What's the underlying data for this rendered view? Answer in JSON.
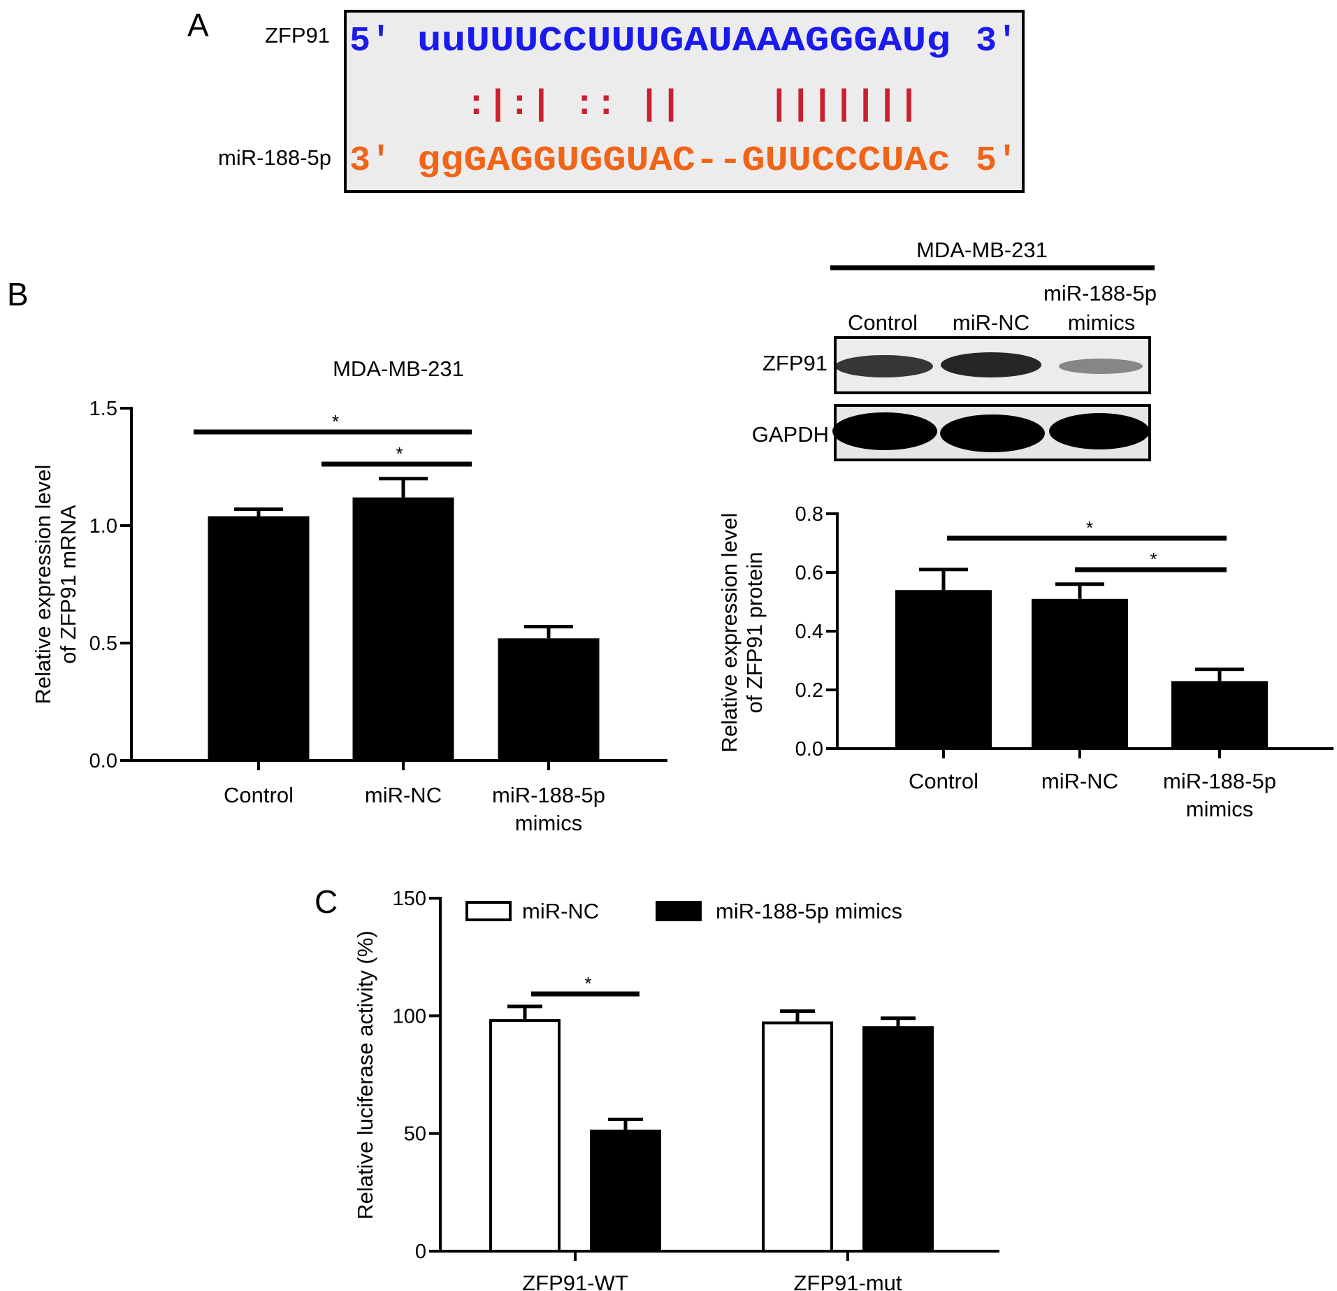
{
  "panel_labels": {
    "a": "A",
    "b": "B",
    "c": "C"
  },
  "alignment": {
    "top_label": "ZFP91",
    "bottom_label": "miR-188-5p",
    "top_seq": {
      "five": "5'",
      "seq": "uuUUUCCUUUGAUAAAGGGAUg",
      "three": "3'"
    },
    "pairing": ":|:| :: ||    |||||||",
    "bottom_seq": {
      "three": "3'",
      "seq": "ggGAGGUGGUAC--GUUCCCUAc",
      "five": "5'"
    },
    "colors": {
      "top": "#1a1aee",
      "bottom": "#f06418",
      "pairing": "#cc1f2e",
      "box": "#ececec"
    }
  },
  "western_blot": {
    "cell_line": "MDA-MB-231",
    "lanes": [
      "Control",
      "miR-NC",
      "miR-188-5p mimics"
    ],
    "lane_label_lines": [
      [
        "Control"
      ],
      [
        "miR-NC"
      ],
      [
        "miR-188-5p",
        "mimics"
      ]
    ],
    "rows": [
      "ZFP91",
      "GAPDH"
    ]
  },
  "chart_data": [
    {
      "type": "bar",
      "title": "MDA-MB-231",
      "ylabel": [
        "Relative expression level",
        "of  ZFP91 mRNA"
      ],
      "xlabel": "",
      "categories": [
        "Control",
        "miR-NC",
        "miR-188-5p mimics"
      ],
      "category_label_lines": [
        [
          "Control"
        ],
        [
          "miR-NC"
        ],
        [
          "miR-188-5p",
          "mimics"
        ]
      ],
      "values": [
        1.04,
        1.12,
        0.52
      ],
      "errors": [
        0.03,
        0.08,
        0.05
      ],
      "ylim": [
        0,
        1.5
      ],
      "yticks": [
        "0.0",
        "0.5",
        "1.0",
        "1.5"
      ],
      "significance": [
        {
          "from": 0,
          "to": 2,
          "label": "*"
        },
        {
          "from": 1,
          "to": 2,
          "label": "*"
        }
      ],
      "bar_color": "#000000"
    },
    {
      "type": "bar",
      "title": "",
      "ylabel": [
        "Relative expression level",
        "of ZFP91 protein"
      ],
      "xlabel": "",
      "categories": [
        "Control",
        "miR-NC",
        "miR-188-5p mimics"
      ],
      "category_label_lines": [
        [
          "Control"
        ],
        [
          "miR-NC"
        ],
        [
          "miR-188-5p",
          "mimics"
        ]
      ],
      "values": [
        0.54,
        0.51,
        0.23
      ],
      "errors": [
        0.07,
        0.05,
        0.04
      ],
      "ylim": [
        0,
        0.8
      ],
      "yticks": [
        "0.0",
        "0.2",
        "0.4",
        "0.6",
        "0.8"
      ],
      "significance": [
        {
          "from": 0,
          "to": 2,
          "label": "*"
        },
        {
          "from": 1,
          "to": 2,
          "label": "*"
        }
      ],
      "bar_color": "#000000"
    },
    {
      "type": "bar",
      "title": "",
      "ylabel": [
        "Relative luciferase activity (%)"
      ],
      "xlabel": "",
      "categories": [
        "ZFP91-WT",
        "ZFP91-mut"
      ],
      "series": [
        {
          "name": "miR-NC",
          "values": [
            98,
            97
          ],
          "errors": [
            6,
            5
          ],
          "color": "#ffffff"
        },
        {
          "name": "miR-188-5p mimics",
          "values": [
            51,
            95
          ],
          "errors": [
            5,
            4
          ],
          "color": "#000000"
        }
      ],
      "ylim": [
        0,
        150
      ],
      "yticks": [
        "0",
        "50",
        "100",
        "150"
      ],
      "legend_position": "top",
      "significance": [
        {
          "group": 0,
          "label": "*"
        }
      ]
    }
  ]
}
